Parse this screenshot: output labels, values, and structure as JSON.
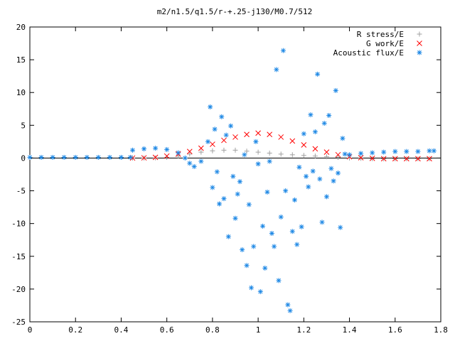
{
  "chart_data": {
    "type": "scatter",
    "title": "m2/n1.5/q1.5/r-+.25-j130/M0.7/512",
    "xlabel": "",
    "ylabel": "",
    "xlim": [
      0,
      1.8
    ],
    "ylim": [
      -25,
      20
    ],
    "xticks": [
      "0",
      "0.2",
      "0.4",
      "0.6",
      "0.8",
      "1",
      "1.2",
      "1.4",
      "1.6",
      "1.8"
    ],
    "yticks": [
      "-25",
      "-20",
      "-15",
      "-10",
      "-5",
      "0",
      "5",
      "10",
      "15",
      "20"
    ],
    "grid": false,
    "legend_position": "top-right",
    "series": [
      {
        "name": "R stress/E",
        "marker": "+",
        "color": "#a0a0a0",
        "points": [
          [
            0.45,
            0.0
          ],
          [
            0.5,
            0.0
          ],
          [
            0.55,
            0.02
          ],
          [
            0.6,
            0.1
          ],
          [
            0.65,
            0.3
          ],
          [
            0.7,
            0.6
          ],
          [
            0.75,
            0.9
          ],
          [
            0.8,
            1.1
          ],
          [
            0.85,
            1.2
          ],
          [
            0.9,
            1.2
          ],
          [
            0.95,
            1.05
          ],
          [
            1.0,
            0.9
          ],
          [
            1.05,
            0.75
          ],
          [
            1.1,
            0.6
          ],
          [
            1.15,
            0.5
          ],
          [
            1.2,
            0.4
          ],
          [
            1.25,
            0.3
          ],
          [
            1.3,
            0.2
          ],
          [
            1.35,
            0.1
          ],
          [
            1.4,
            0.0
          ],
          [
            1.45,
            -0.05
          ],
          [
            1.5,
            -0.1
          ],
          [
            1.55,
            -0.12
          ],
          [
            1.6,
            -0.12
          ],
          [
            1.65,
            -0.1
          ],
          [
            1.7,
            -0.1
          ],
          [
            1.75,
            -0.1
          ]
        ]
      },
      {
        "name": "G work/E",
        "marker": "x",
        "color": "#ff0000",
        "points": [
          [
            0.45,
            0.0
          ],
          [
            0.5,
            0.03
          ],
          [
            0.55,
            0.1
          ],
          [
            0.6,
            0.3
          ],
          [
            0.65,
            0.6
          ],
          [
            0.7,
            1.0
          ],
          [
            0.75,
            1.5
          ],
          [
            0.8,
            2.1
          ],
          [
            0.85,
            2.7
          ],
          [
            0.9,
            3.2
          ],
          [
            0.95,
            3.6
          ],
          [
            1.0,
            3.8
          ],
          [
            1.05,
            3.6
          ],
          [
            1.1,
            3.2
          ],
          [
            1.15,
            2.6
          ],
          [
            1.2,
            2.0
          ],
          [
            1.25,
            1.4
          ],
          [
            1.3,
            0.9
          ],
          [
            1.35,
            0.5
          ],
          [
            1.4,
            0.2
          ],
          [
            1.45,
            0.05
          ],
          [
            1.5,
            -0.05
          ],
          [
            1.55,
            -0.1
          ],
          [
            1.6,
            -0.1
          ],
          [
            1.65,
            -0.1
          ],
          [
            1.7,
            -0.1
          ],
          [
            1.75,
            -0.1
          ]
        ]
      },
      {
        "name": "Acoustic flux/E",
        "marker": "*",
        "color": "#1e88e5",
        "points": [
          [
            0.0,
            0.1
          ],
          [
            0.05,
            0.1
          ],
          [
            0.1,
            0.1
          ],
          [
            0.15,
            0.1
          ],
          [
            0.2,
            0.1
          ],
          [
            0.25,
            0.1
          ],
          [
            0.3,
            0.1
          ],
          [
            0.35,
            0.1
          ],
          [
            0.4,
            0.1
          ],
          [
            0.44,
            0.1
          ],
          [
            0.45,
            1.2
          ],
          [
            0.5,
            1.4
          ],
          [
            0.55,
            1.5
          ],
          [
            0.6,
            1.3
          ],
          [
            0.65,
            0.8
          ],
          [
            0.68,
            0.0
          ],
          [
            0.7,
            -0.8
          ],
          [
            0.72,
            -1.3
          ],
          [
            0.75,
            -0.5
          ],
          [
            0.78,
            2.5
          ],
          [
            0.79,
            7.8
          ],
          [
            0.8,
            -4.5
          ],
          [
            0.81,
            4.4
          ],
          [
            0.82,
            -2.1
          ],
          [
            0.83,
            -7.0
          ],
          [
            0.84,
            6.3
          ],
          [
            0.85,
            -6.2
          ],
          [
            0.86,
            3.5
          ],
          [
            0.87,
            -12.0
          ],
          [
            0.88,
            4.9
          ],
          [
            0.89,
            -2.8
          ],
          [
            0.9,
            -9.2
          ],
          [
            0.91,
            -5.5
          ],
          [
            0.92,
            -3.6
          ],
          [
            0.93,
            -14.0
          ],
          [
            0.94,
            0.5
          ],
          [
            0.95,
            -16.4
          ],
          [
            0.96,
            -7.1
          ],
          [
            0.97,
            -19.8
          ],
          [
            0.98,
            -13.5
          ],
          [
            0.99,
            2.5
          ],
          [
            1.0,
            -0.9
          ],
          [
            1.01,
            -20.4
          ],
          [
            1.02,
            -10.4
          ],
          [
            1.03,
            -16.8
          ],
          [
            1.04,
            -5.2
          ],
          [
            1.05,
            -0.5
          ],
          [
            1.06,
            -11.5
          ],
          [
            1.07,
            -13.5
          ],
          [
            1.08,
            13.5
          ],
          [
            1.09,
            -18.7
          ],
          [
            1.1,
            -9.0
          ],
          [
            1.11,
            16.4
          ],
          [
            1.12,
            -5.0
          ],
          [
            1.13,
            -22.4
          ],
          [
            1.14,
            -23.3
          ],
          [
            1.15,
            -11.2
          ],
          [
            1.16,
            -6.4
          ],
          [
            1.17,
            -13.2
          ],
          [
            1.18,
            -1.4
          ],
          [
            1.19,
            -10.5
          ],
          [
            1.2,
            3.7
          ],
          [
            1.21,
            -2.8
          ],
          [
            1.22,
            -4.4
          ],
          [
            1.23,
            6.6
          ],
          [
            1.24,
            -2.0
          ],
          [
            1.25,
            4.0
          ],
          [
            1.26,
            12.8
          ],
          [
            1.27,
            -3.2
          ],
          [
            1.28,
            -9.8
          ],
          [
            1.29,
            5.3
          ],
          [
            1.3,
            -5.9
          ],
          [
            1.31,
            6.5
          ],
          [
            1.32,
            -1.6
          ],
          [
            1.33,
            -3.5
          ],
          [
            1.34,
            10.3
          ],
          [
            1.35,
            -2.3
          ],
          [
            1.36,
            -10.6
          ],
          [
            1.37,
            3.0
          ],
          [
            1.38,
            0.6
          ],
          [
            1.4,
            0.5
          ],
          [
            1.45,
            0.7
          ],
          [
            1.5,
            0.8
          ],
          [
            1.55,
            0.9
          ],
          [
            1.6,
            1.0
          ],
          [
            1.65,
            1.0
          ],
          [
            1.7,
            1.0
          ],
          [
            1.75,
            1.1
          ],
          [
            1.77,
            1.1
          ]
        ]
      }
    ]
  }
}
